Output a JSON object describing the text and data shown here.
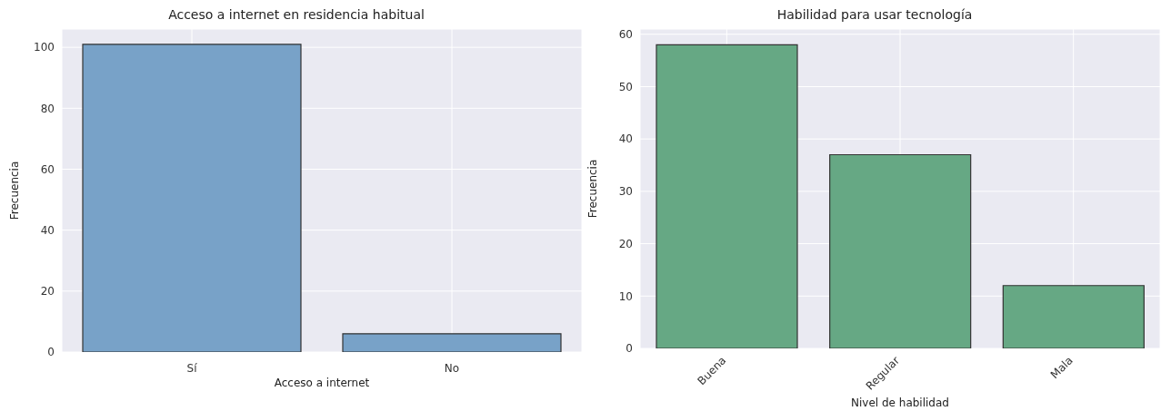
{
  "chart_data": [
    {
      "type": "bar",
      "title": "Acceso a internet en residencia habitual",
      "xlabel": "Acceso a internet",
      "ylabel": "Frecuencia",
      "categories": [
        "Sí",
        "No"
      ],
      "values": [
        101,
        6
      ],
      "color": "#78a2c8",
      "ylim": [
        0,
        106
      ],
      "yticks": [
        0,
        20,
        40,
        60,
        80,
        100
      ],
      "grid": true
    },
    {
      "type": "bar",
      "title": "Habilidad para usar tecnología",
      "xlabel": "Nivel de habilidad",
      "ylabel": "Frecuencia",
      "categories": [
        "Buena",
        "Regular",
        "Mala"
      ],
      "values": [
        58,
        37,
        12
      ],
      "color": "#66a884",
      "ylim": [
        0,
        61
      ],
      "yticks": [
        0,
        10,
        20,
        30,
        40,
        50,
        60
      ],
      "grid": true
    }
  ]
}
